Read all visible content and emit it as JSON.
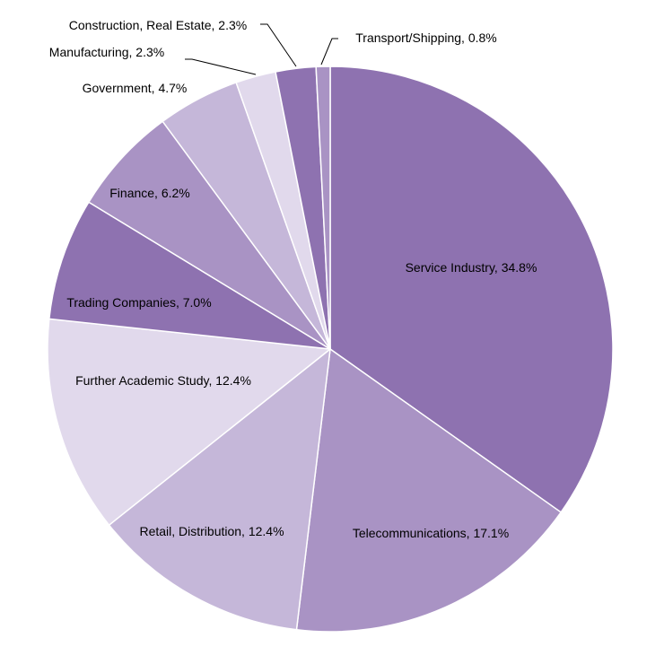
{
  "chart_data": {
    "type": "pie",
    "title": "",
    "slices": [
      {
        "label": "Service Industry",
        "value": 34.8,
        "value_text": "34.8%",
        "color": "#8E72B0"
      },
      {
        "label": "Telecommunications",
        "value": 17.1,
        "value_text": "17.1%",
        "color": "#A993C4"
      },
      {
        "label": "Retail, Distribution",
        "value": 12.4,
        "value_text": "12.4%",
        "color": "#C5B7D9"
      },
      {
        "label": "Further Academic Study",
        "value": 12.4,
        "value_text": "12.4%",
        "color": "#E1D9EC"
      },
      {
        "label": "Trading Companies",
        "value": 7.0,
        "value_text": "7.0%",
        "color": "#8E72B0"
      },
      {
        "label": "Finance",
        "value": 6.2,
        "value_text": "6.2%",
        "color": "#A993C4"
      },
      {
        "label": "Government",
        "value": 4.7,
        "value_text": "4.7%",
        "color": "#C5B7D9"
      },
      {
        "label": "Manufacturing",
        "value": 2.3,
        "value_text": "2.3%",
        "color": "#E1D9EC"
      },
      {
        "label": "Construction, Real Estate",
        "value": 2.3,
        "value_text": "2.3%",
        "color": "#8E72B0"
      },
      {
        "label": "Transport/Shipping",
        "value": 0.8,
        "value_text": "0.8%",
        "color": "#A993C4"
      }
    ],
    "start_angle": "12 o'clock",
    "direction": "clockwise",
    "legend": "none",
    "label_position": "on slices, with leader lines for small slices"
  }
}
